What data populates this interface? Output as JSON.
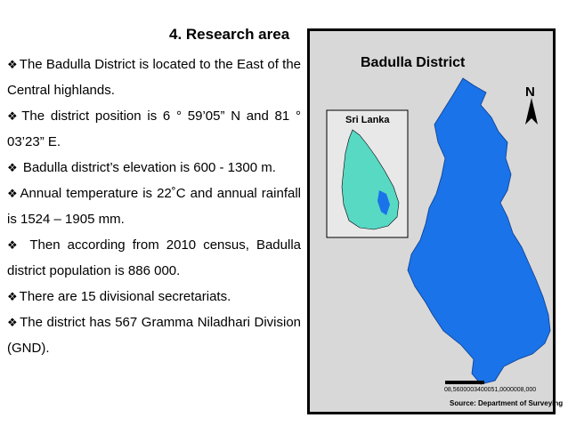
{
  "title": "4. Research area",
  "bullet_symbol": "❖",
  "bullets": [
    "The Badulla District is located to the East of the Central highlands.",
    "The district position is  6 ° 59’05” N and 81 ° 03’23” E.",
    " Badulla district’s elevation is 600 - 1300 m.",
    "Annual temperature is 22˚C and annual rainfall is 1524 – 1905 mm.",
    " Then according from 2010 census, Badulla district population is 886 000.",
    "There are 15 divisional secretariats.",
    "The district has 567 Gramma Niladhari Division (GND)."
  ],
  "map": {
    "title": "Badulla District",
    "inset_label": "Sri Lanka",
    "north_label": "N",
    "scale_text": "08,5600003400051,0000008,000",
    "source": "Source: Department of Surveying",
    "colors": {
      "district_fill": "#1a73e8",
      "inset_fill": "#58d9c4",
      "inset_highlight": "#1a73e8",
      "frame_bg": "#d8d8d8"
    }
  }
}
